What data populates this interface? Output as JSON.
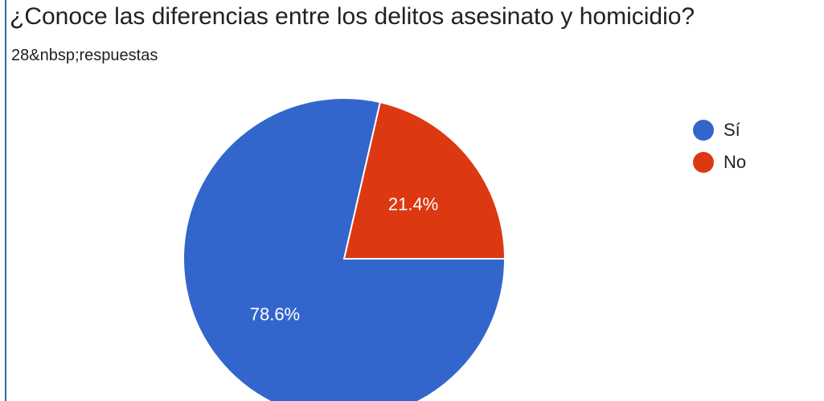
{
  "header": {
    "question": "¿Conoce las diferencias entre los delitos asesinato y homicidio?",
    "responses": "28&nbsp;respuestas"
  },
  "chart_data": {
    "type": "pie",
    "title": "¿Conoce las diferencias entre los delitos asesinato y homicidio?",
    "categories": [
      "Sí",
      "No"
    ],
    "values": [
      78.6,
      21.4
    ],
    "labels": [
      "78.6%",
      "21.4%"
    ],
    "colors": [
      "#3366cc",
      "#dc3912"
    ],
    "legend_position": "right"
  }
}
